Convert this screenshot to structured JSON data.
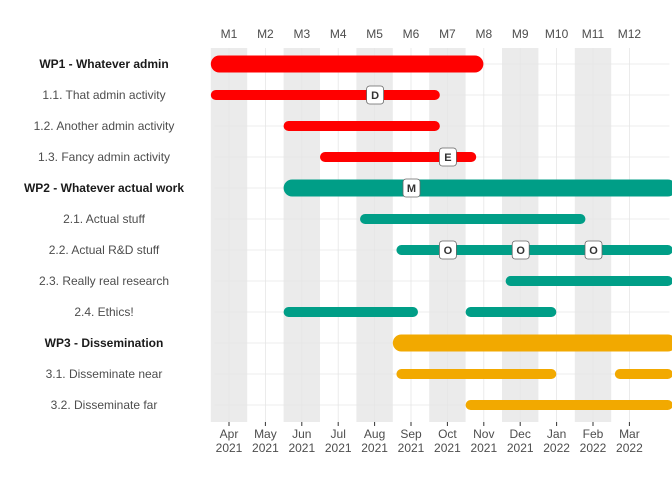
{
  "chart_data": {
    "type": "gantt",
    "top_ticks": [
      "M1",
      "M2",
      "M3",
      "M4",
      "M5",
      "M6",
      "M7",
      "M8",
      "M9",
      "M10",
      "M11",
      "M12"
    ],
    "bottom_ticks": [
      {
        "month": "Apr",
        "year": "2021"
      },
      {
        "month": "May",
        "year": "2021"
      },
      {
        "month": "Jun",
        "year": "2021"
      },
      {
        "month": "Jul",
        "year": "2021"
      },
      {
        "month": "Aug",
        "year": "2021"
      },
      {
        "month": "Sep",
        "year": "2021"
      },
      {
        "month": "Oct",
        "year": "2021"
      },
      {
        "month": "Nov",
        "year": "2021"
      },
      {
        "month": "Dec",
        "year": "2021"
      },
      {
        "month": "Jan",
        "year": "2022"
      },
      {
        "month": "Feb",
        "year": "2022"
      },
      {
        "month": "Mar",
        "year": "2022"
      }
    ],
    "shaded_months": [
      1,
      3,
      5,
      7,
      9,
      11
    ],
    "x_range_months": [
      0.6,
      13.1
    ],
    "colors": {
      "wp1": "#ff0000",
      "wp2": "#009e87",
      "wp3": "#f2a900",
      "shade": "#ebebeb",
      "grid": "#e6e6e6"
    },
    "rows": [
      {
        "label": "WP1 - Whatever admin",
        "type": "wp",
        "color": "wp1",
        "start": 1.0,
        "end": 7.7
      },
      {
        "label": "1.1. That admin activity",
        "type": "activity",
        "color": "wp1",
        "start": 1.0,
        "end": 6.6
      },
      {
        "label": "1.2. Another admin activity",
        "type": "activity",
        "color": "wp1",
        "start": 3.0,
        "end": 6.6
      },
      {
        "label": "1.3. Fancy admin activity",
        "type": "activity",
        "color": "wp1",
        "start": 4.0,
        "end": 7.6
      },
      {
        "label": "WP2 - Whatever actual work",
        "type": "wp",
        "color": "wp2",
        "start": 3.0,
        "end": 13.0
      },
      {
        "label": "2.1. Actual stuff",
        "type": "activity",
        "color": "wp2",
        "start": 5.1,
        "end": 10.6
      },
      {
        "label": "2.2. Actual R&D stuff",
        "type": "activity",
        "color": "wp2",
        "start": 6.1,
        "end": 13.0
      },
      {
        "label": "2.3. Really real research",
        "type": "activity",
        "color": "wp2",
        "start": 9.1,
        "end": 13.0
      },
      {
        "label": "2.4. Ethics!",
        "type": "activity",
        "color": "wp2",
        "start": 3.0,
        "end": 6.0
      },
      {
        "label": "2.4. Ethics! (second span)",
        "type": "span",
        "color": "wp2",
        "start": 8.0,
        "end": 9.8
      },
      {
        "label": "WP3 - Dissemination",
        "type": "wp",
        "color": "wp3",
        "start": 6.0,
        "end": 13.0
      },
      {
        "label": "3.1. Disseminate near",
        "type": "activity",
        "color": "wp3",
        "start": 6.1,
        "end": 9.8
      },
      {
        "label": "3.1. Disseminate near (second span)",
        "type": "span",
        "color": "wp3",
        "start": 12.1,
        "end": 13.0
      },
      {
        "label": "3.2. Disseminate far",
        "type": "activity",
        "color": "wp3",
        "start": 8.0,
        "end": 13.0
      }
    ],
    "milestones": [
      {
        "text": "D",
        "row": 1,
        "month": 5.0
      },
      {
        "text": "E",
        "row": 3,
        "month": 7.0
      },
      {
        "text": "M",
        "row": 4,
        "month": 6.0
      },
      {
        "text": "O",
        "row": 6,
        "month": 7.0
      },
      {
        "text": "O",
        "row": 6,
        "month": 9.0
      },
      {
        "text": "O",
        "row": 6,
        "month": 11.0
      }
    ]
  }
}
